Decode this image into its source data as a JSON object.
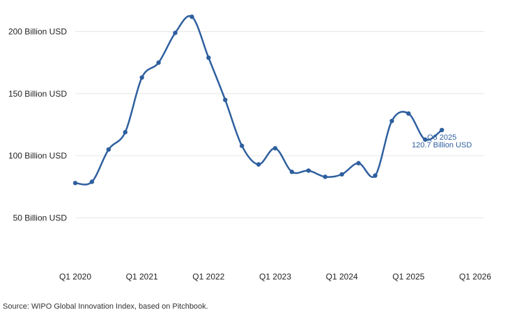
{
  "chart_data": {
    "type": "line",
    "x": [
      "Q1 2020",
      "Q2 2020",
      "Q3 2020",
      "Q4 2020",
      "Q1 2021",
      "Q2 2021",
      "Q3 2021",
      "Q4 2021",
      "Q1 2022",
      "Q2 2022",
      "Q3 2022",
      "Q4 2022",
      "Q1 2023",
      "Q2 2023",
      "Q3 2023",
      "Q4 2023",
      "Q1 2024",
      "Q2 2024",
      "Q3 2024",
      "Q4 2024",
      "Q1 2025",
      "Q2 2025",
      "Q3 2025"
    ],
    "x_numeric": [
      2020.0,
      2020.25,
      2020.5,
      2020.75,
      2021.0,
      2021.25,
      2021.5,
      2021.75,
      2022.0,
      2022.25,
      2022.5,
      2022.75,
      2023.0,
      2023.25,
      2023.5,
      2023.75,
      2024.0,
      2024.25,
      2024.5,
      2024.75,
      2025.0,
      2025.25,
      2025.5
    ],
    "series": [
      {
        "values": [
          78,
          79,
          105,
          119,
          163,
          175,
          199,
          212,
          179,
          145,
          108,
          93,
          106,
          87,
          88,
          83,
          85,
          94,
          84,
          128,
          134,
          113,
          120.7
        ]
      }
    ],
    "xlim": [
      2020,
      2026
    ],
    "ylim": [
      0,
      220
    ],
    "y_ticks": [
      50,
      100,
      150,
      200
    ],
    "y_tick_labels": [
      "50 Billion USD",
      "100 Billion USD",
      "150 Billion USD",
      "200 Billion USD"
    ],
    "x_ticks": [
      2020,
      2021,
      2022,
      2023,
      2024,
      2025,
      2026
    ],
    "x_tick_labels": [
      "Q1 2020",
      "Q1 2021",
      "Q1 2022",
      "Q1 2023",
      "Q1 2024",
      "Q1 2025",
      "Q1 2026"
    ],
    "grid": true,
    "annotation": {
      "line1": "Q3 2025",
      "line2": "120.7 Billion USD"
    },
    "colors": {
      "line": "#2e5f9e",
      "grid": "#e6e6e6",
      "annotation": "#2e5f9e"
    }
  },
  "source": "Source: WIPO Global Innovation Index, based on Pitchbook."
}
